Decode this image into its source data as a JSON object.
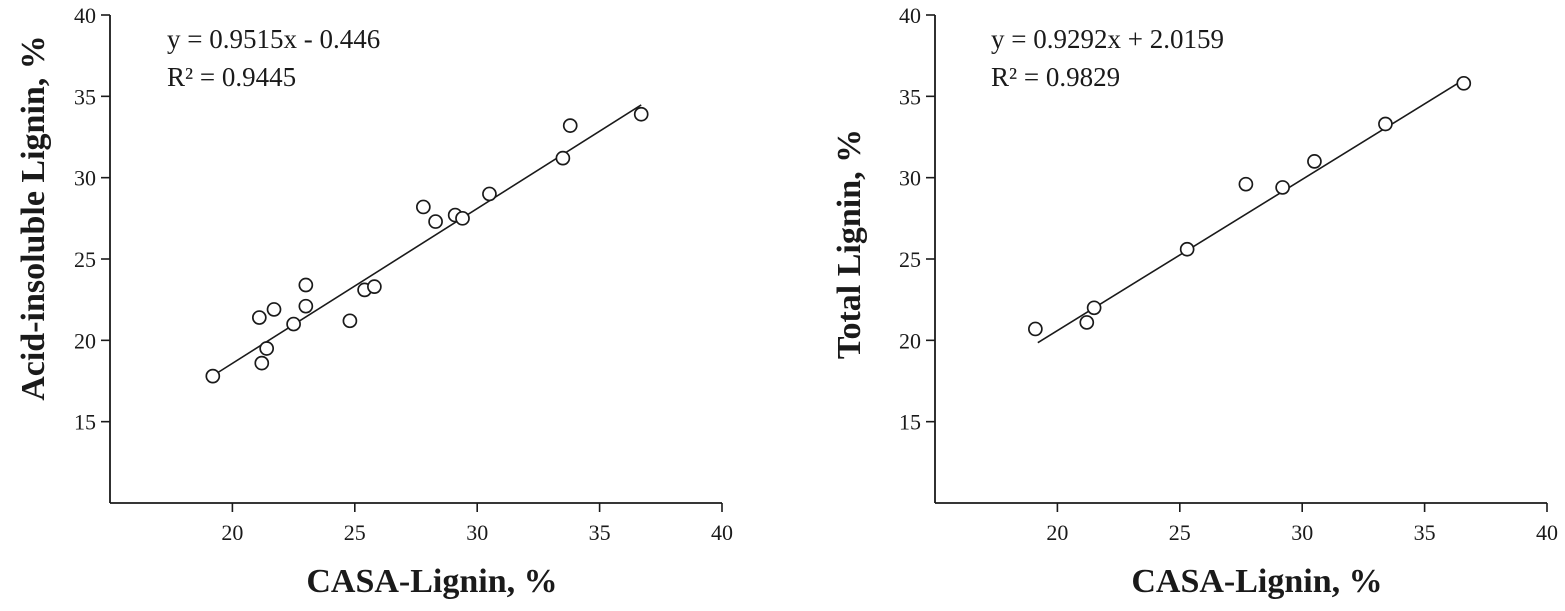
{
  "chart_data": [
    {
      "type": "scatter",
      "xlabel": "CASA-Lignin, %",
      "ylabel": "Acid-insoluble Lignin, %",
      "xlim": [
        15,
        40
      ],
      "ylim": [
        10,
        40
      ],
      "xticks": [
        20,
        25,
        30,
        35,
        40
      ],
      "yticks": [
        15,
        20,
        25,
        30,
        35,
        40
      ],
      "annotations": [
        "y = 0.9515x - 0.446",
        "R² = 0.9445"
      ],
      "trendline": {
        "slope": 0.9515,
        "intercept": -0.446,
        "x_range": [
          19.2,
          36.7
        ]
      },
      "points": [
        [
          19.2,
          17.8
        ],
        [
          21.1,
          21.4
        ],
        [
          21.2,
          18.6
        ],
        [
          21.4,
          19.5
        ],
        [
          21.7,
          21.9
        ],
        [
          22.5,
          21.0
        ],
        [
          23.0,
          22.1
        ],
        [
          23.0,
          23.4
        ],
        [
          24.8,
          21.2
        ],
        [
          25.4,
          23.1
        ],
        [
          25.8,
          23.3
        ],
        [
          27.8,
          28.2
        ],
        [
          28.3,
          27.3
        ],
        [
          29.1,
          27.7
        ],
        [
          29.4,
          27.5
        ],
        [
          30.5,
          29.0
        ],
        [
          33.5,
          31.2
        ],
        [
          33.8,
          33.2
        ],
        [
          36.7,
          33.9
        ]
      ],
      "grid": false,
      "legend": "none"
    },
    {
      "type": "scatter",
      "xlabel": "CASA-Lignin, %",
      "ylabel": "Total Lignin, %",
      "xlim": [
        15,
        40
      ],
      "ylim": [
        10,
        40
      ],
      "xticks": [
        20,
        25,
        30,
        35,
        40
      ],
      "yticks": [
        15,
        20,
        25,
        30,
        35,
        40
      ],
      "annotations": [
        "y = 0.9292x + 2.0159",
        "R² = 0.9829"
      ],
      "trendline": {
        "slope": 0.9292,
        "intercept": 2.0159,
        "x_range": [
          19.2,
          36.6
        ]
      },
      "points": [
        [
          19.1,
          20.7
        ],
        [
          21.2,
          21.1
        ],
        [
          21.5,
          22.0
        ],
        [
          25.3,
          25.6
        ],
        [
          27.7,
          29.6
        ],
        [
          29.2,
          29.4
        ],
        [
          30.5,
          31.0
        ],
        [
          33.4,
          33.3
        ],
        [
          36.6,
          35.8
        ]
      ],
      "grid": false,
      "legend": "none"
    }
  ]
}
